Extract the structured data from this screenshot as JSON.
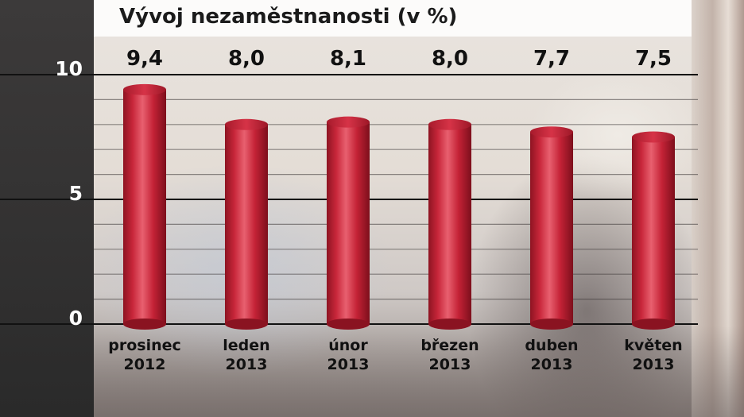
{
  "chart_data": {
    "type": "bar",
    "title": "Vývoj nezaměstnanosti (v %)",
    "categories": [
      [
        "prosinec",
        "2012"
      ],
      [
        "leden",
        "2013"
      ],
      [
        "únor",
        "2013"
      ],
      [
        "březen",
        "2013"
      ],
      [
        "duben",
        "2013"
      ],
      [
        "květen",
        "2013"
      ]
    ],
    "values": [
      9.4,
      8.0,
      8.1,
      8.0,
      7.7,
      7.5
    ],
    "value_labels": [
      "9,4",
      "8,0",
      "8,1",
      "8,0",
      "7,7",
      "7,5"
    ],
    "ylim": [
      0,
      10
    ],
    "yticks": [
      0,
      5,
      10
    ],
    "ytick_labels": [
      "0",
      "5",
      "10"
    ],
    "grid": true,
    "bar_color": "#c8263a"
  }
}
